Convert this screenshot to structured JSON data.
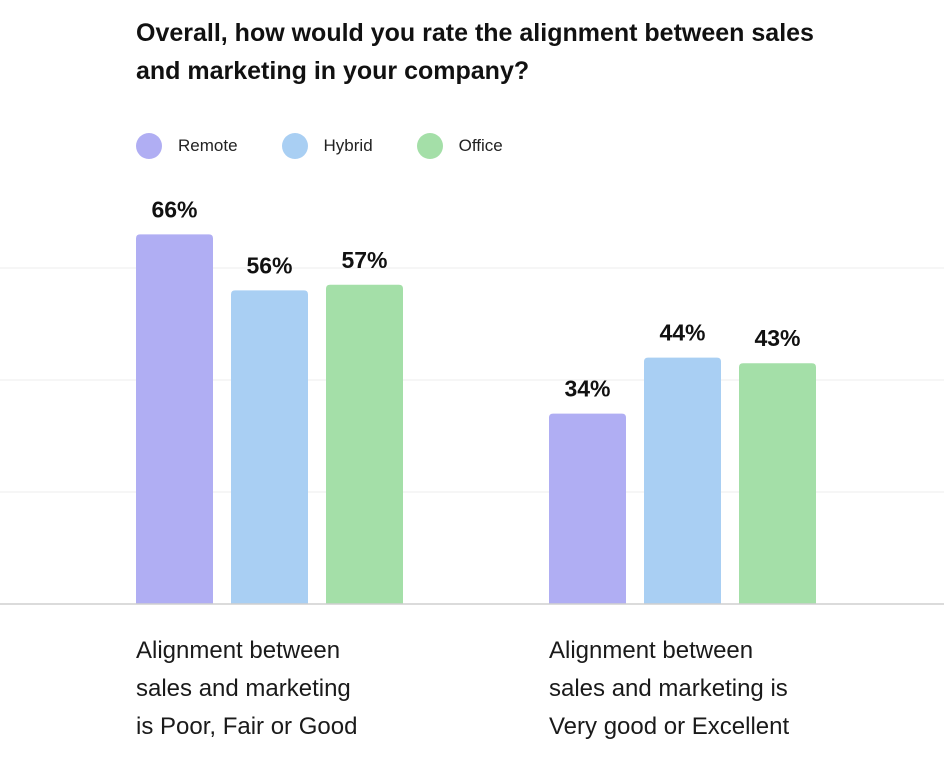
{
  "title": "Overall, how would you rate the alignment between sales and marketing in your company?",
  "legend": [
    {
      "label": "Remote",
      "color": "#b0aef3"
    },
    {
      "label": "Hybrid",
      "color": "#a9cff3"
    },
    {
      "label": "Office",
      "color": "#a4dfa8"
    }
  ],
  "chart_data": {
    "type": "bar",
    "categories": [
      "Alignment between sales and marketing is Poor, Fair or Good",
      "Alignment between sales and marketing is Very good or Excellent"
    ],
    "series": [
      {
        "name": "Remote",
        "values": [
          66,
          34
        ],
        "labels": [
          "66%",
          "34%"
        ]
      },
      {
        "name": "Hybrid",
        "values": [
          56,
          44
        ],
        "labels": [
          "56%",
          "44%"
        ]
      },
      {
        "name": "Office",
        "values": [
          57,
          43
        ],
        "labels": [
          "57%",
          "43%"
        ]
      }
    ],
    "title": "Overall, how would you rate the alignment between sales and marketing in your company?",
    "xlabel": "",
    "ylabel": "",
    "ylim": [
      0,
      75
    ],
    "grid": true,
    "legend_position": "top-left"
  },
  "category_labels": [
    [
      "Alignment between",
      "sales and marketing",
      "is Poor, Fair or Good"
    ],
    [
      "Alignment between",
      "sales and marketing is",
      "Very good or Excellent"
    ]
  ]
}
